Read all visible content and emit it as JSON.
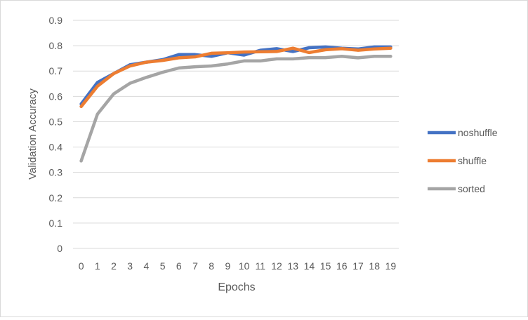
{
  "chart_data": {
    "type": "line",
    "title": "",
    "xlabel": "Epochs",
    "ylabel": "Validation Accuracy",
    "categories": [
      "0",
      "1",
      "2",
      "3",
      "4",
      "5",
      "6",
      "7",
      "8",
      "9",
      "10",
      "11",
      "12",
      "13",
      "14",
      "15",
      "16",
      "17",
      "18",
      "19"
    ],
    "ylim": [
      0,
      0.9
    ],
    "yticks": [
      "0",
      "0.1",
      "0.2",
      "0.3",
      "0.4",
      "0.5",
      "0.6",
      "0.7",
      "0.8",
      "0.9"
    ],
    "grid": true,
    "legend_position": "right",
    "series": [
      {
        "name": "noshuffle",
        "color": "#4472C4",
        "values": [
          0.57,
          0.655,
          0.69,
          0.725,
          0.735,
          0.745,
          0.765,
          0.765,
          0.758,
          0.772,
          0.763,
          0.782,
          0.788,
          0.777,
          0.792,
          0.795,
          0.79,
          0.787,
          0.795,
          0.795
        ]
      },
      {
        "name": "shuffle",
        "color": "#ED7D31",
        "values": [
          0.56,
          0.64,
          0.69,
          0.72,
          0.735,
          0.742,
          0.752,
          0.756,
          0.77,
          0.772,
          0.775,
          0.776,
          0.777,
          0.79,
          0.773,
          0.784,
          0.788,
          0.782,
          0.787,
          0.79
        ]
      },
      {
        "name": "sorted",
        "color": "#A5A5A5",
        "values": [
          0.345,
          0.53,
          0.61,
          0.652,
          0.675,
          0.695,
          0.712,
          0.717,
          0.72,
          0.728,
          0.74,
          0.74,
          0.748,
          0.748,
          0.753,
          0.753,
          0.758,
          0.752,
          0.758,
          0.758
        ]
      }
    ]
  }
}
